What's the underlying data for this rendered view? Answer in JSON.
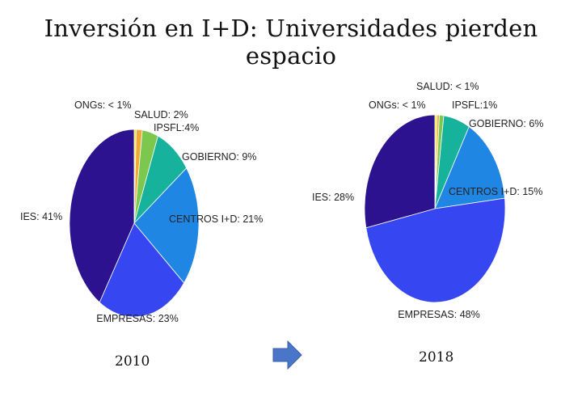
{
  "title": "Inversión en I+D: Universidades pierden espacio",
  "chart_data": [
    {
      "type": "pie",
      "year_label": "2010",
      "slices": [
        {
          "key": "ongs",
          "label": "ONGs: < 1%",
          "value": 0.5,
          "color": "#f0e52a"
        },
        {
          "key": "salud",
          "label": "SALUD: 2%",
          "value": 1.5,
          "color": "#f2a934"
        },
        {
          "key": "ipsfl",
          "label": "IPSFL:4%",
          "value": 4,
          "color": "#7cc84e"
        },
        {
          "key": "gobierno",
          "label": "GOBIERNO: 9%",
          "value": 9,
          "color": "#17b29c"
        },
        {
          "key": "centros",
          "label": "CENTROS I+D: 21%",
          "value": 21,
          "color": "#1f86e4"
        },
        {
          "key": "empresas",
          "label": "EMPRESAS: 23%",
          "value": 23,
          "color": "#3647f2"
        },
        {
          "key": "ies",
          "label": "IES: 41%",
          "value": 41,
          "color": "#2d128f"
        }
      ]
    },
    {
      "type": "pie",
      "year_label": "2018",
      "slices": [
        {
          "key": "ongs",
          "label": "ONGs: < 1%",
          "value": 0.5,
          "color": "#f0e52a"
        },
        {
          "key": "salud",
          "label": "SALUD: < 1%",
          "value": 0.5,
          "color": "#f2a934"
        },
        {
          "key": "ipsfl",
          "label": "IPSFL:1%",
          "value": 1,
          "color": "#7cc84e"
        },
        {
          "key": "gobierno",
          "label": "GOBIERNO: 6%",
          "value": 6,
          "color": "#17b29c"
        },
        {
          "key": "centros",
          "label": "CENTROS I+D: 15%",
          "value": 15,
          "color": "#1f86e4"
        },
        {
          "key": "empresas",
          "label": "EMPRESAS: 48%",
          "value": 48,
          "color": "#3647f2"
        },
        {
          "key": "ies",
          "label": "IES: 28%",
          "value": 28,
          "color": "#2d128f"
        }
      ]
    }
  ],
  "arrow": {
    "icon": "right-arrow-icon",
    "color": "#4a76c9"
  }
}
